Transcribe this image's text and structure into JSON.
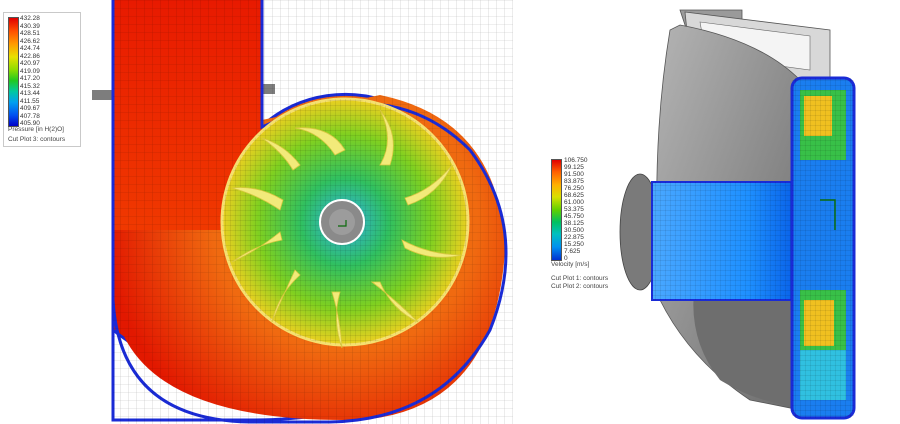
{
  "pressure_legend": {
    "ticks": [
      "432.28",
      "430.39",
      "428.51",
      "426.62",
      "424.74",
      "422.86",
      "420.97",
      "419.09",
      "417.20",
      "415.32",
      "413.44",
      "411.55",
      "409.67",
      "407.78",
      "405.90"
    ],
    "unit_label": "Pressure [in H(2)O]",
    "plot_label": "Cut Plot 3: contours"
  },
  "velocity_legend": {
    "ticks": [
      "106.750",
      "99.125",
      "91.500",
      "83.875",
      "76.250",
      "68.625",
      "61.000",
      "53.375",
      "45.750",
      "38.125",
      "30.500",
      "22.875",
      "15.250",
      "7.625",
      "0"
    ],
    "unit_label": "Velocity [m/s]",
    "plot_labels": [
      "Cut Plot 1: contours",
      "Cut Plot 2: contours"
    ]
  },
  "colors": {
    "high": "#e01a00",
    "mid": "#f0e020",
    "low": "#0060ff",
    "steel": "#8e8e8e",
    "outline": "#1a2bd6"
  }
}
